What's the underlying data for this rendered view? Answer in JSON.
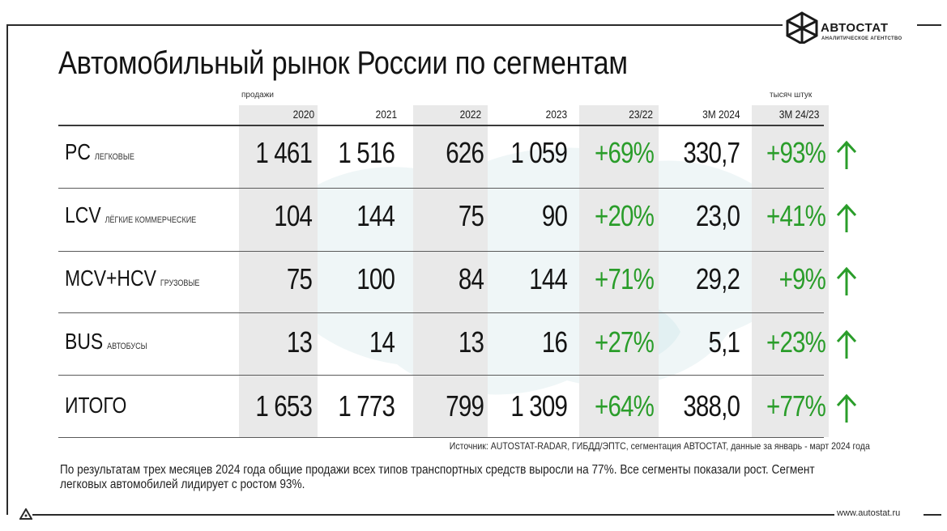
{
  "logo": {
    "name": "АВТОСТАТ",
    "subtitle": "АНАЛИТИЧЕСКОЕ АГЕНТСТВО"
  },
  "title": "Автомобильный рынок России по сегментам",
  "units_left": "продажи",
  "units_right": "тысяч штук",
  "columns": [
    "2020",
    "2021",
    "2022",
    "2023",
    "23/22",
    "3М 2024",
    "3М 24/23"
  ],
  "rows": [
    {
      "code": "PC",
      "desc": "легковые",
      "values": [
        "1 461",
        "1 516",
        "626",
        "1 059",
        "+69%",
        "330,7",
        "+93%"
      ]
    },
    {
      "code": "LCV",
      "desc": "лёгкие коммерческие",
      "values": [
        "104",
        "144",
        "75",
        "90",
        "+20%",
        "23,0",
        "+41%"
      ]
    },
    {
      "code": "MCV+HCV",
      "desc": "грузовые",
      "values": [
        "75",
        "100",
        "84",
        "144",
        "+71%",
        "29,2",
        "+9%"
      ]
    },
    {
      "code": "BUS",
      "desc": "автобусы",
      "values": [
        "13",
        "14",
        "13",
        "16",
        "+27%",
        "5,1",
        "+23%"
      ]
    },
    {
      "code": "ИТОГО",
      "desc": "",
      "values": [
        "1 653",
        "1 773",
        "799",
        "1 309",
        "+64%",
        "388,0",
        "+77%"
      ]
    }
  ],
  "trend_icon": "arrow-up-icon",
  "positive_color": "#2a9d2a",
  "source": "Источник: AUTOSTAT-RADAR, ГИБДД/ЭПТС, сегментация АВТОСТАТ, данные за январь - март 2024 года",
  "summary": "По результатам трех месяцев 2024 года общие продажи всех типов транспортных средств выросли на 77%. Все сегменты показали рост. Сегмент легковых автомобилей лидирует с ростом 93%.",
  "website": "www.autostat.ru"
}
